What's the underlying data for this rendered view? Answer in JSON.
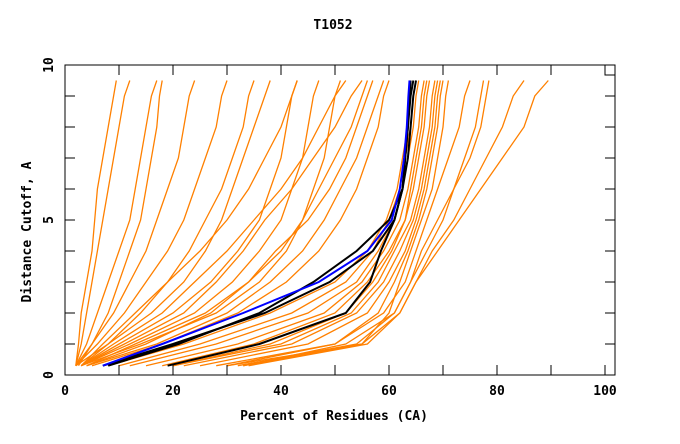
{
  "chart_data": {
    "type": "line",
    "title": "T1052",
    "xlabel": "Percent of Residues (CA)",
    "ylabel": "Distance Cutoff, A",
    "xlim": [
      0,
      100
    ],
    "ylim": [
      0,
      10
    ],
    "x_ticks": [
      0,
      20,
      40,
      60,
      80,
      100
    ],
    "y_ticks": [
      0,
      5,
      10
    ],
    "grid": false,
    "colors": {
      "models": "#ff8000",
      "highlight_black": "#000000",
      "highlight_blue": "#0000ff"
    },
    "y_cutoffs": [
      0.3,
      1,
      2,
      3,
      4,
      5,
      6,
      7,
      8,
      9,
      9.5
    ],
    "orange_series_x": [
      [
        2,
        3,
        4,
        5,
        6,
        7,
        8,
        9,
        10,
        11,
        12
      ],
      [
        2,
        2.5,
        3,
        4,
        5,
        5.5,
        6,
        7,
        8,
        9,
        9.5
      ],
      [
        2,
        4,
        6,
        8,
        10,
        12,
        13,
        14,
        15,
        16,
        17
      ],
      [
        2.5,
        5,
        8,
        10,
        12,
        14,
        15,
        16,
        17,
        17.5,
        18
      ],
      [
        2,
        5,
        9,
        12,
        15,
        17,
        19,
        21,
        22,
        23,
        24
      ],
      [
        2,
        6,
        11,
        15,
        19,
        22,
        24,
        26,
        28,
        29,
        30
      ],
      [
        3,
        8,
        14,
        19,
        23,
        26,
        29,
        31,
        33,
        34,
        35
      ],
      [
        2,
        8,
        16,
        22,
        26,
        29,
        31,
        33,
        35,
        37,
        38
      ],
      [
        3,
        10,
        20,
        27,
        32,
        36,
        38,
        40,
        41,
        42,
        43
      ],
      [
        3,
        12,
        24,
        31,
        36,
        40,
        42,
        44,
        45,
        46,
        47
      ],
      [
        3,
        14,
        28,
        36,
        41,
        44,
        46,
        48,
        49,
        50,
        51
      ],
      [
        4,
        15,
        27,
        34,
        39,
        45,
        49,
        52,
        54,
        56,
        57
      ],
      [
        4,
        17,
        30,
        38,
        44,
        48,
        51,
        54,
        56,
        58,
        59
      ],
      [
        5,
        18,
        32,
        41,
        47,
        51,
        54,
        56,
        58,
        59,
        60
      ],
      [
        3,
        9,
        18,
        24,
        30,
        35,
        40,
        44,
        47,
        50,
        52
      ],
      [
        3,
        11,
        22,
        28,
        33,
        37,
        42,
        46,
        50,
        53,
        55
      ],
      [
        4,
        13,
        26,
        34,
        40,
        44,
        47,
        50,
        53,
        55,
        56
      ],
      [
        3,
        7,
        13,
        19,
        25,
        30,
        34,
        37,
        40,
        42,
        43
      ],
      [
        10,
        25,
        42,
        52,
        57,
        60,
        62,
        63,
        64,
        64.5,
        65
      ],
      [
        12,
        28,
        45,
        54,
        58,
        61,
        62.5,
        63.5,
        64.5,
        65,
        65.5
      ],
      [
        15,
        32,
        48,
        55,
        59,
        62,
        63.5,
        64.5,
        65.5,
        66,
        66.5
      ],
      [
        18,
        35,
        50,
        56,
        60,
        63,
        64.5,
        65.5,
        66.5,
        67,
        67.5
      ],
      [
        20,
        40,
        53,
        58,
        61,
        64,
        65.5,
        66.5,
        67.5,
        68,
        68.5
      ],
      [
        22,
        42,
        54,
        59,
        62,
        64.5,
        66,
        67,
        68,
        68.5,
        69
      ],
      [
        25,
        45,
        56,
        60,
        63,
        65,
        66.5,
        67.5,
        68.5,
        69,
        69.5
      ],
      [
        28,
        50,
        58,
        61,
        63.5,
        65.5,
        67,
        68,
        69,
        69.5,
        70
      ],
      [
        30,
        55,
        60,
        62,
        64,
        66,
        68,
        69,
        70,
        70.5,
        71
      ],
      [
        8,
        22,
        38,
        50,
        56,
        59.5,
        61.5,
        62.5,
        63.5,
        64,
        64.5
      ],
      [
        20,
        38,
        52,
        57,
        60.5,
        63,
        64,
        65,
        66,
        66.5,
        67
      ],
      [
        33,
        52,
        61,
        64,
        66,
        69,
        72,
        75,
        77,
        78,
        78.5
      ],
      [
        33,
        55,
        62,
        65,
        68,
        72,
        75,
        78,
        81,
        83,
        85
      ],
      [
        34,
        56,
        62,
        65,
        69,
        73,
        77,
        81,
        85,
        87,
        89.5
      ],
      [
        32,
        54,
        61,
        64,
        67,
        70,
        72,
        74,
        76,
        77,
        77.5
      ],
      [
        30,
        50,
        59,
        63,
        65,
        67,
        69,
        71,
        73,
        74,
        75
      ]
    ],
    "black_series_x": [
      [
        7,
        20,
        37,
        49,
        57,
        61,
        62.5,
        63,
        63.5,
        63.8,
        64
      ],
      [
        19,
        36,
        52,
        56.5,
        58.5,
        61,
        62.5,
        63,
        63.5,
        64,
        64.5
      ],
      [
        8,
        21,
        36,
        46,
        54,
        60,
        62.5,
        63.5,
        64,
        64.5,
        65
      ]
    ],
    "blue_series_x": [
      [
        7,
        18,
        33,
        47,
        56,
        60.5,
        62,
        62.8,
        63.3,
        63.6,
        63.8
      ]
    ]
  }
}
